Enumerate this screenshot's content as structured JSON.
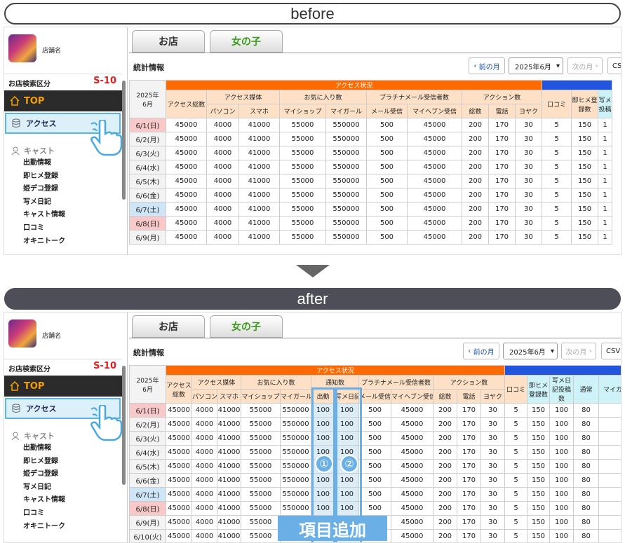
{
  "banners": {
    "before": "before",
    "after": "after",
    "add_label": "項目追加"
  },
  "sidebar": {
    "shop_name": "店舗名",
    "category_label": "お店検索区分",
    "category_code": "S-10",
    "top_label": "TOP",
    "access_label": "アクセス",
    "cast_header": "キャスト",
    "cast_items": [
      "出勤情報",
      "即ヒメ登録",
      "姫デコ登録",
      "写メ日記",
      "キャスト情報",
      "口コミ",
      "オキニトーク"
    ]
  },
  "tabs": {
    "shop": "お店",
    "girl": "女の子"
  },
  "toolbar": {
    "title": "統計情報",
    "prev": "前の月",
    "month": "2025年6月",
    "next": "次の月",
    "csv_before": "CSV",
    "csv_after": "CSV"
  },
  "table": {
    "corner": "2025年\n6月",
    "top_header": "アクセス状況",
    "total_header": "アクセス総数",
    "groups_before": [
      "アクセス媒体",
      "お気に入り数",
      "プラチナメール受信者数",
      "アクション数"
    ],
    "groups_after": [
      "アクセス媒体",
      "お気に入り数",
      "通知数",
      "プラチナメール受信者数",
      "アクション数"
    ],
    "sub_before": [
      "パソコン",
      "スマホ",
      "マイショップ",
      "マイガール",
      "メール受信",
      "マイヘブン受信",
      "総数",
      "電話",
      "ヨヤク",
      "口コミ",
      "即ヒメ登録数",
      "写メ投稿"
    ],
    "sub_after": [
      "パソコン",
      "スマホ",
      "マイショップ",
      "マイガール",
      "出勤",
      "写メ日記",
      "メール受信",
      "マイヘブン受信",
      "総数",
      "電話",
      "ヨヤク",
      "口コミ",
      "即ヒメ登録数",
      "写メ日記投稿数",
      "通常",
      "マイガ"
    ],
    "dates_before": [
      "6/1(日)",
      "6/2(月)",
      "6/3(火)",
      "6/4(水)",
      "6/5(木)",
      "6/6(金)",
      "6/7(土)",
      "6/8(日)",
      "6/9(月)"
    ],
    "dates_after": [
      "6/1(日)",
      "6/2(月)",
      "6/3(火)",
      "6/4(水)",
      "6/5(木)",
      "6/6(金)",
      "6/7(土)",
      "6/8(日)",
      "6/9(月)",
      "6/10(火)"
    ],
    "row_before": [
      "45000",
      "4000",
      "41000",
      "55000",
      "550000",
      "500",
      "45000",
      "200",
      "170",
      "30",
      "5",
      "150",
      "1"
    ],
    "row_after": [
      "45000",
      "4000",
      "41000",
      "55000",
      "550000",
      "100",
      "100",
      "500",
      "45000",
      "200",
      "170",
      "30",
      "5",
      "150",
      "100",
      "80",
      ""
    ]
  },
  "markers": [
    "①",
    "②"
  ]
}
